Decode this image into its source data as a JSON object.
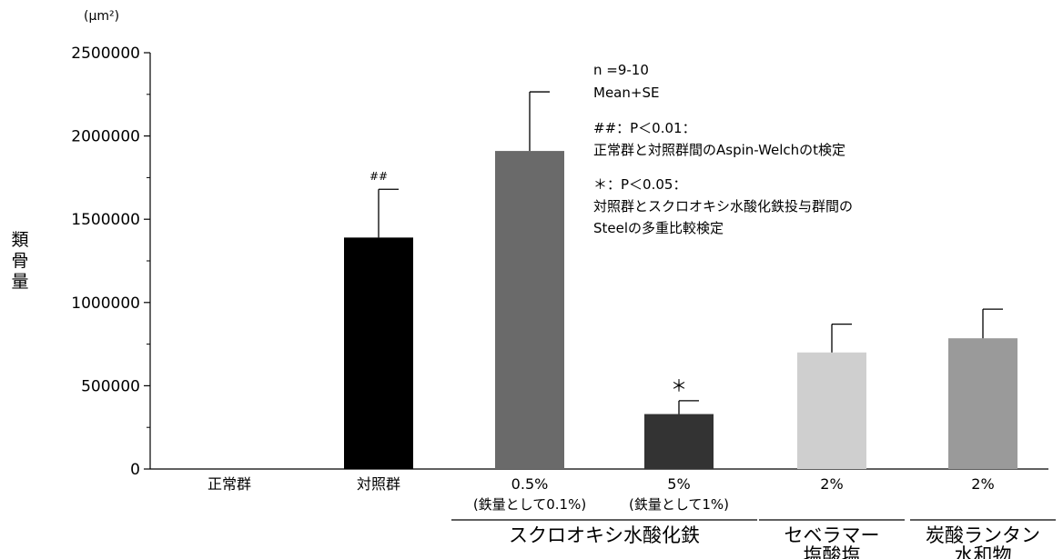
{
  "chart_data": {
    "type": "bar",
    "unit_label": "(μm²)",
    "ylabel": "類骨量",
    "ylim": [
      0,
      2500000
    ],
    "yticks": [
      0,
      500000,
      1000000,
      1500000,
      2000000,
      2500000
    ],
    "ytick_labels": [
      "0",
      "500000",
      "1000000",
      "1500000",
      "2000000",
      "2500000"
    ],
    "categories": [
      {
        "line1": "正常群",
        "line2": ""
      },
      {
        "line1": "対照群",
        "line2": ""
      },
      {
        "line1": "0.5%",
        "line2": "(鉄量として0.1%)"
      },
      {
        "line1": "5%",
        "line2": "(鉄量として1%)"
      },
      {
        "line1": "2%",
        "line2": ""
      },
      {
        "line1": "2%",
        "line2": ""
      }
    ],
    "values": [
      0,
      1390000,
      1910000,
      330000,
      700000,
      785000
    ],
    "errors": [
      0,
      290000,
      355000,
      80000,
      170000,
      175000
    ],
    "colors": [
      "#000000",
      "#000000",
      "#6a6a6a",
      "#333333",
      "#cfcfcf",
      "#9a9a9a"
    ],
    "marks": [
      "",
      "##",
      "",
      "＊",
      "",
      ""
    ],
    "groups": [
      {
        "label_lines": [
          "スクロオキシ水酸化鉄"
        ],
        "span": [
          2,
          3
        ]
      },
      {
        "label_lines": [
          "セベラマー",
          "塩酸塩"
        ],
        "span": [
          4,
          4
        ]
      },
      {
        "label_lines": [
          "炭酸ランタン",
          "水和物"
        ],
        "span": [
          5,
          5
        ]
      }
    ],
    "annotations": [
      "n =9-10",
      "Mean+SE",
      "##：P＜0.01：",
      "正常群と対照群間のAspin-Welchのt検定",
      "＊：P＜0.05：",
      "対照群とスクロオキシ水酸化鉄投与群間の",
      "Steelの多重比較検定"
    ]
  }
}
